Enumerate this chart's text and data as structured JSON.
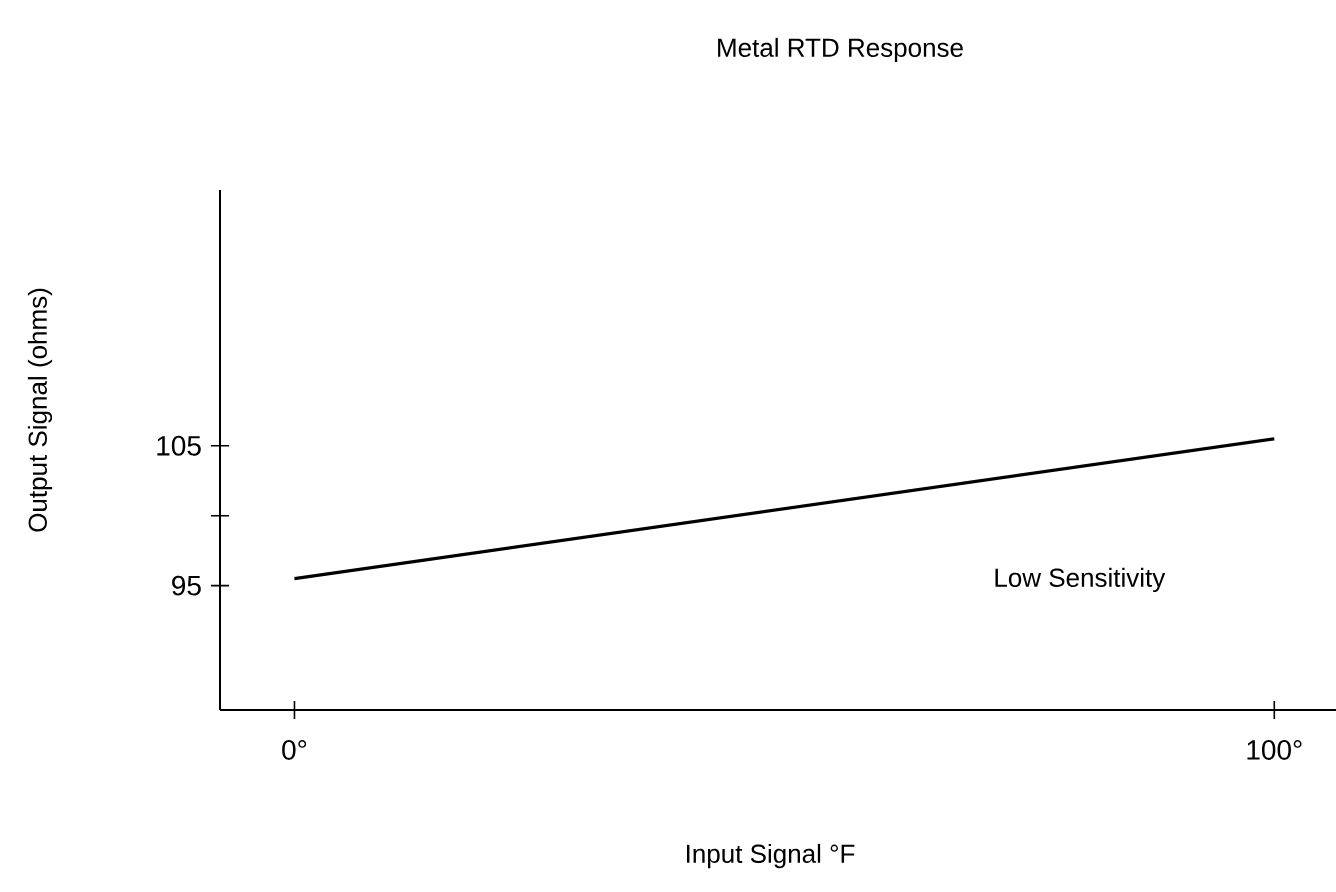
{
  "chart_data": {
    "type": "line",
    "title": "Metal RTD Response",
    "xlabel": "Input Signal °F",
    "ylabel": "Output Signal (ohms)",
    "x": [
      0,
      100
    ],
    "values": [
      95.5,
      105.5
    ],
    "color": "#000000",
    "line_style": "solid",
    "xlim": [
      -7.6,
      106.3
    ],
    "ylim": [
      86.1,
      123.3
    ],
    "xticks": [
      {
        "value": 0,
        "label": "0°"
      },
      {
        "value": 100,
        "label": "100°"
      }
    ],
    "yticks": [
      95,
      {
        "value": 100,
        "label": null
      },
      105
    ],
    "annotations": [
      "Low Sensitivity"
    ]
  }
}
